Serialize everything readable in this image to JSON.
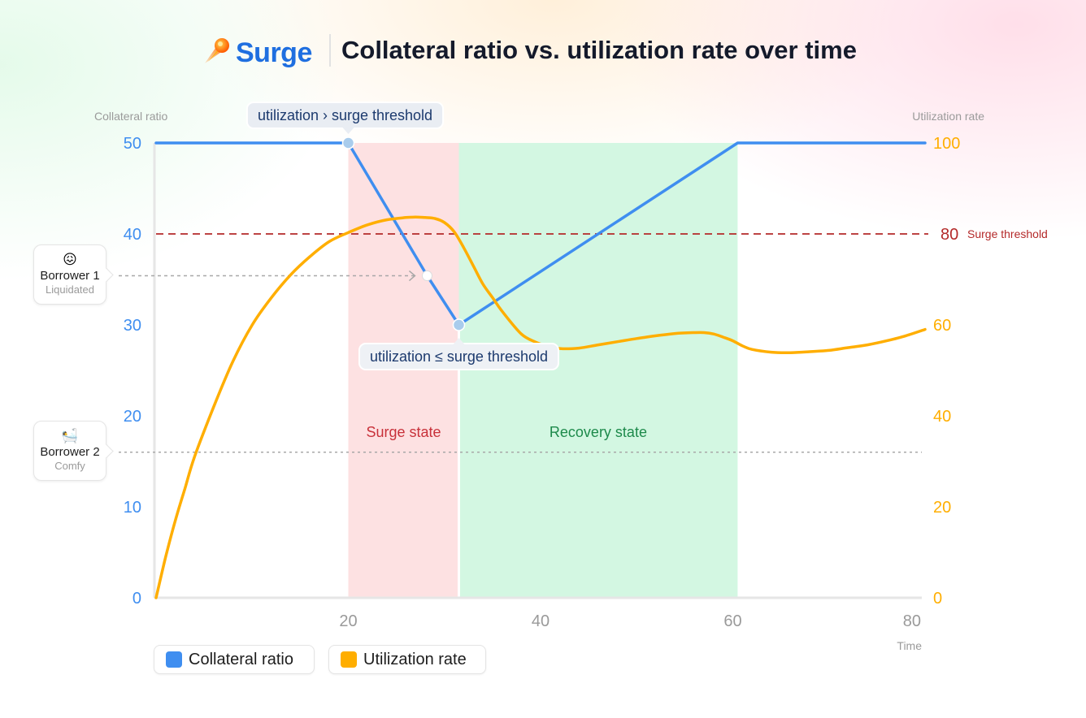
{
  "header": {
    "logo_text": "Surge",
    "logo_icon": "comet-icon",
    "title": "Collateral ratio vs. utilization rate over time"
  },
  "chart_data": {
    "type": "line",
    "title": "Collateral ratio vs. utilization rate over time",
    "xlabel": "Time",
    "y_left_label": "Collateral ratio",
    "y_right_label": "Utilization rate",
    "xlim": [
      0,
      80
    ],
    "y_left_lim": [
      0,
      50
    ],
    "y_right_lim": [
      0,
      100
    ],
    "x_ticks": [
      "20",
      "40",
      "60",
      "80"
    ],
    "x_tick_values": [
      20,
      40,
      60,
      80
    ],
    "y_left_ticks": [
      "0",
      "10",
      "20",
      "30",
      "40",
      "50"
    ],
    "y_right_ticks": [
      "0",
      "20",
      "40",
      "60",
      "80",
      "100"
    ],
    "series": [
      {
        "name": "Collateral ratio",
        "axis": "left",
        "color": "#3f8ef0",
        "points": [
          [
            0,
            50
          ],
          [
            20,
            50
          ],
          [
            28.2,
            35.4
          ],
          [
            31.5,
            30
          ],
          [
            60.5,
            50
          ],
          [
            80,
            50
          ]
        ]
      },
      {
        "name": "Utilization rate",
        "axis": "right",
        "color": "#ffae00",
        "points": [
          [
            0,
            0
          ],
          [
            1,
            9
          ],
          [
            2,
            17
          ],
          [
            3,
            24
          ],
          [
            4,
            31
          ],
          [
            6,
            42
          ],
          [
            8,
            52
          ],
          [
            10,
            60
          ],
          [
            12,
            66
          ],
          [
            14,
            71
          ],
          [
            16,
            75
          ],
          [
            18,
            78.3
          ],
          [
            20,
            80.3
          ],
          [
            22,
            82
          ],
          [
            24,
            83.1
          ],
          [
            26,
            83.6
          ],
          [
            27,
            83.7
          ],
          [
            28,
            83.6
          ],
          [
            29,
            83.4
          ],
          [
            30,
            82.5
          ],
          [
            31,
            80.5
          ],
          [
            32,
            77
          ],
          [
            33,
            73
          ],
          [
            34,
            69
          ],
          [
            35,
            66
          ],
          [
            36,
            63
          ],
          [
            38,
            58
          ],
          [
            39.5,
            56.2
          ],
          [
            40.5,
            55.5
          ],
          [
            42,
            54.8
          ],
          [
            44,
            54.9
          ],
          [
            46,
            55.6
          ],
          [
            48,
            56.3
          ],
          [
            50,
            57
          ],
          [
            52,
            57.6
          ],
          [
            54,
            58.1
          ],
          [
            56,
            58.3
          ],
          [
            57,
            58.3
          ],
          [
            58,
            58
          ],
          [
            59,
            57.3
          ],
          [
            60,
            56.5
          ],
          [
            61,
            55.4
          ],
          [
            62,
            54.6
          ],
          [
            64,
            54
          ],
          [
            66,
            53.9
          ],
          [
            68,
            54.1
          ],
          [
            70,
            54.4
          ],
          [
            72,
            55
          ],
          [
            74,
            55.6
          ],
          [
            76,
            56.5
          ],
          [
            78,
            57.6
          ],
          [
            80,
            59
          ]
        ]
      }
    ],
    "threshold": {
      "axis": "right",
      "value": 80,
      "value_label": "80",
      "label": "Surge threshold",
      "color": "#b42a2a"
    },
    "regions": [
      {
        "label": "Surge state",
        "x_start": 20,
        "x_end": 31.5,
        "color": "#fde1e2",
        "text_color": "#c8313a"
      },
      {
        "label": "Recovery state",
        "x_start": 31.5,
        "x_end": 60.5,
        "color": "#d3f7e2",
        "text_color": "#1d8a4b"
      }
    ],
    "annotations": [
      {
        "text": "utilization › surge threshold",
        "x": 20,
        "y": 50,
        "position": "above"
      },
      {
        "text": "utilization ≤ surge threshold",
        "x": 31.5,
        "y": 30,
        "position": "below"
      }
    ],
    "borrowers": [
      {
        "emoji": "😖",
        "name": "Borrower 1",
        "status": "Liquidated",
        "collateral_ratio": 35.4,
        "hits_curve_at_x": 28.2
      },
      {
        "emoji": "🛀",
        "name": "Borrower 2",
        "status": "Comfy",
        "collateral_ratio": 16
      }
    ],
    "legend": [
      {
        "label": "Collateral ratio",
        "color": "#3f8ef0"
      },
      {
        "label": "Utilization rate",
        "color": "#ffae00"
      }
    ]
  }
}
